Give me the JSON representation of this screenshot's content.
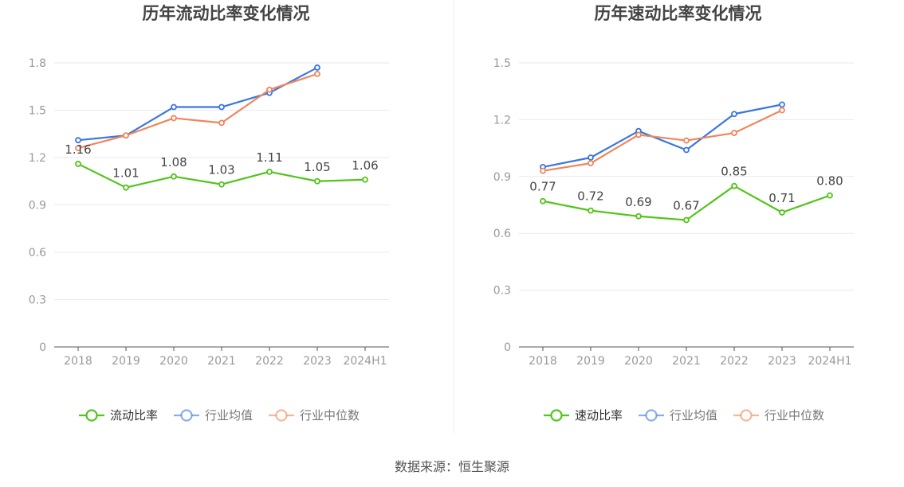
{
  "footer": {
    "source": "数据来源：恒生聚源"
  },
  "colors": {
    "company": "#52c41a",
    "avg": "#3a76e3",
    "median": "#f0865a",
    "axis": "#999999",
    "grid": "#e8eaf0"
  },
  "chart_data": [
    {
      "type": "line",
      "title": "历年流动比率变化情况",
      "categories": [
        "2018",
        "2019",
        "2020",
        "2021",
        "2022",
        "2023",
        "2024H1"
      ],
      "ylim": [
        0,
        1.8
      ],
      "yticks": [
        "0",
        "0.3",
        "0.6",
        "0.9",
        "1.2",
        "1.5",
        "1.8"
      ],
      "grid": true,
      "legend_position": "bottom",
      "series": [
        {
          "name": "流动比率",
          "key": "company",
          "values": [
            1.16,
            1.01,
            1.08,
            1.03,
            1.11,
            1.05,
            1.06
          ],
          "labels": [
            "1.16",
            "1.01",
            "1.08",
            "1.03",
            "1.11",
            "1.05",
            "1.06"
          ]
        },
        {
          "name": "行业均值",
          "key": "avg",
          "values": [
            1.31,
            1.34,
            1.52,
            1.52,
            1.61,
            1.77,
            null
          ]
        },
        {
          "name": "行业中位数",
          "key": "median",
          "values": [
            1.26,
            1.34,
            1.45,
            1.42,
            1.63,
            1.73,
            null
          ]
        }
      ]
    },
    {
      "type": "line",
      "title": "历年速动比率变化情况",
      "categories": [
        "2018",
        "2019",
        "2020",
        "2021",
        "2022",
        "2023",
        "2024H1"
      ],
      "ylim": [
        0,
        1.5
      ],
      "yticks": [
        "0",
        "0.3",
        "0.6",
        "0.9",
        "1.2",
        "1.5"
      ],
      "grid": true,
      "legend_position": "bottom",
      "series": [
        {
          "name": "速动比率",
          "key": "company",
          "values": [
            0.77,
            0.72,
            0.69,
            0.67,
            0.85,
            0.71,
            0.8
          ],
          "labels": [
            "0.77",
            "0.72",
            "0.69",
            "0.67",
            "0.85",
            "0.71",
            "0.80"
          ]
        },
        {
          "name": "行业均值",
          "key": "avg",
          "values": [
            0.95,
            1.0,
            1.14,
            1.04,
            1.23,
            1.28,
            null
          ]
        },
        {
          "name": "行业中位数",
          "key": "median",
          "values": [
            0.93,
            0.97,
            1.12,
            1.09,
            1.13,
            1.25,
            null
          ]
        }
      ]
    }
  ]
}
